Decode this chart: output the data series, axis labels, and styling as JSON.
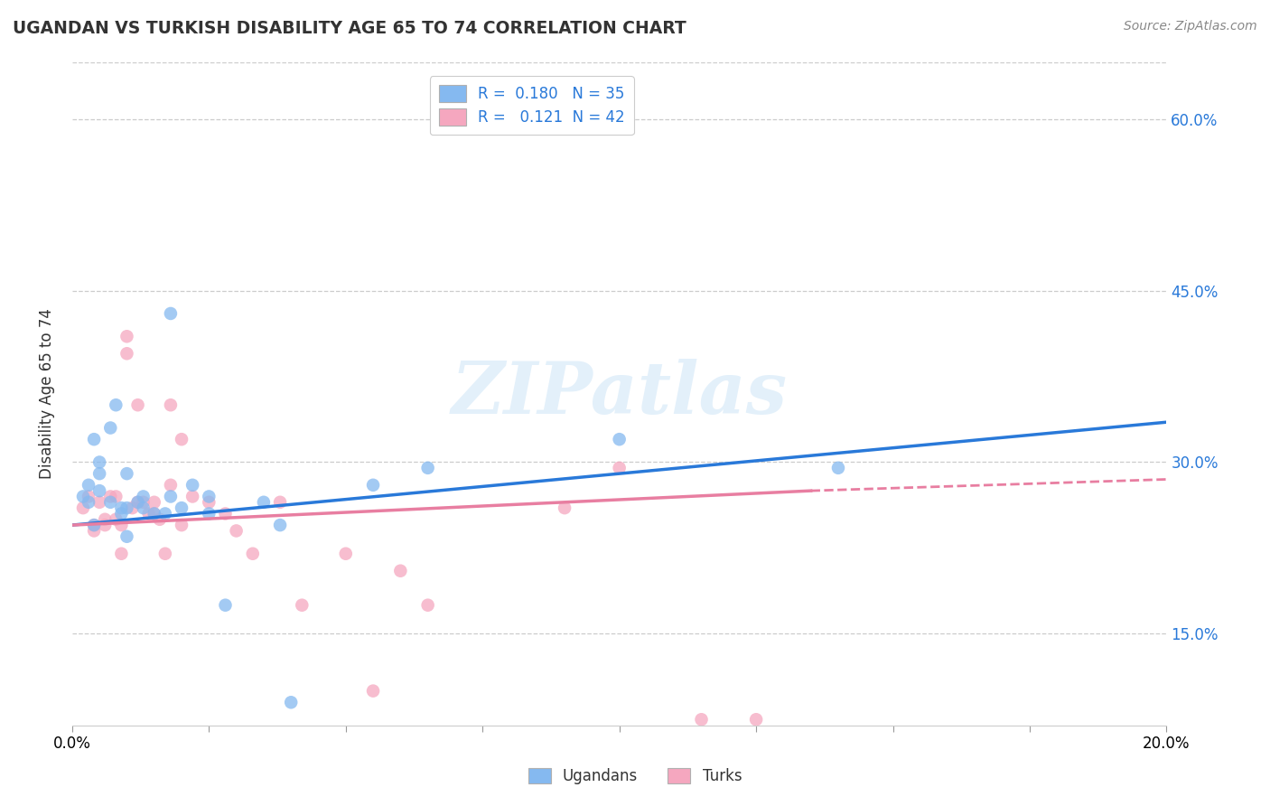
{
  "title": "UGANDAN VS TURKISH DISABILITY AGE 65 TO 74 CORRELATION CHART",
  "source": "Source: ZipAtlas.com",
  "ylabel": "Disability Age 65 to 74",
  "xlim": [
    0.0,
    0.2
  ],
  "ylim": [
    0.07,
    0.65
  ],
  "yticks": [
    0.15,
    0.3,
    0.45,
    0.6
  ],
  "ytick_labels": [
    "15.0%",
    "30.0%",
    "45.0%",
    "60.0%"
  ],
  "xticks": [
    0.0,
    0.025,
    0.05,
    0.075,
    0.1,
    0.125,
    0.15,
    0.175,
    0.2
  ],
  "xtick_labels_show": [
    0.0,
    0.2
  ],
  "legend_ugandan": "R =  0.180   N = 35",
  "legend_turkish": "R =   0.121  N = 42",
  "ugandan_color": "#85b9f0",
  "turkish_color": "#f5a7bf",
  "ugandan_line_color": "#2979d9",
  "turkish_line_color": "#e87ea1",
  "watermark": "ZIPatlas",
  "ugandan_scatter_x": [
    0.002,
    0.003,
    0.003,
    0.004,
    0.004,
    0.005,
    0.005,
    0.005,
    0.007,
    0.007,
    0.008,
    0.009,
    0.009,
    0.01,
    0.01,
    0.01,
    0.012,
    0.013,
    0.013,
    0.015,
    0.017,
    0.018,
    0.018,
    0.02,
    0.022,
    0.025,
    0.025,
    0.028,
    0.035,
    0.038,
    0.04,
    0.055,
    0.065,
    0.1,
    0.14
  ],
  "ugandan_scatter_y": [
    0.27,
    0.28,
    0.265,
    0.245,
    0.32,
    0.29,
    0.3,
    0.275,
    0.33,
    0.265,
    0.35,
    0.26,
    0.255,
    0.29,
    0.26,
    0.235,
    0.265,
    0.26,
    0.27,
    0.255,
    0.255,
    0.27,
    0.43,
    0.26,
    0.28,
    0.255,
    0.27,
    0.175,
    0.265,
    0.245,
    0.09,
    0.28,
    0.295,
    0.32,
    0.295
  ],
  "turkish_scatter_x": [
    0.002,
    0.003,
    0.004,
    0.004,
    0.005,
    0.006,
    0.006,
    0.007,
    0.008,
    0.008,
    0.009,
    0.009,
    0.01,
    0.01,
    0.011,
    0.012,
    0.012,
    0.013,
    0.014,
    0.015,
    0.015,
    0.016,
    0.017,
    0.018,
    0.018,
    0.02,
    0.02,
    0.022,
    0.025,
    0.028,
    0.03,
    0.033,
    0.038,
    0.042,
    0.05,
    0.055,
    0.06,
    0.065,
    0.09,
    0.1,
    0.115,
    0.125
  ],
  "turkish_scatter_y": [
    0.26,
    0.27,
    0.245,
    0.24,
    0.265,
    0.245,
    0.25,
    0.27,
    0.25,
    0.27,
    0.22,
    0.245,
    0.395,
    0.41,
    0.26,
    0.265,
    0.35,
    0.265,
    0.255,
    0.265,
    0.255,
    0.25,
    0.22,
    0.28,
    0.35,
    0.245,
    0.32,
    0.27,
    0.265,
    0.255,
    0.24,
    0.22,
    0.265,
    0.175,
    0.22,
    0.1,
    0.205,
    0.175,
    0.26,
    0.295,
    0.075,
    0.075
  ],
  "ugandan_line_x0": 0.0,
  "ugandan_line_x1": 0.2,
  "ugandan_line_y0": 0.245,
  "ugandan_line_y1": 0.335,
  "turkish_line_x0": 0.0,
  "turkish_line_x1_solid": 0.135,
  "turkish_line_x1_dash": 0.2,
  "turkish_line_y0": 0.245,
  "turkish_line_y1_solid": 0.275,
  "turkish_line_y1_dash": 0.285
}
